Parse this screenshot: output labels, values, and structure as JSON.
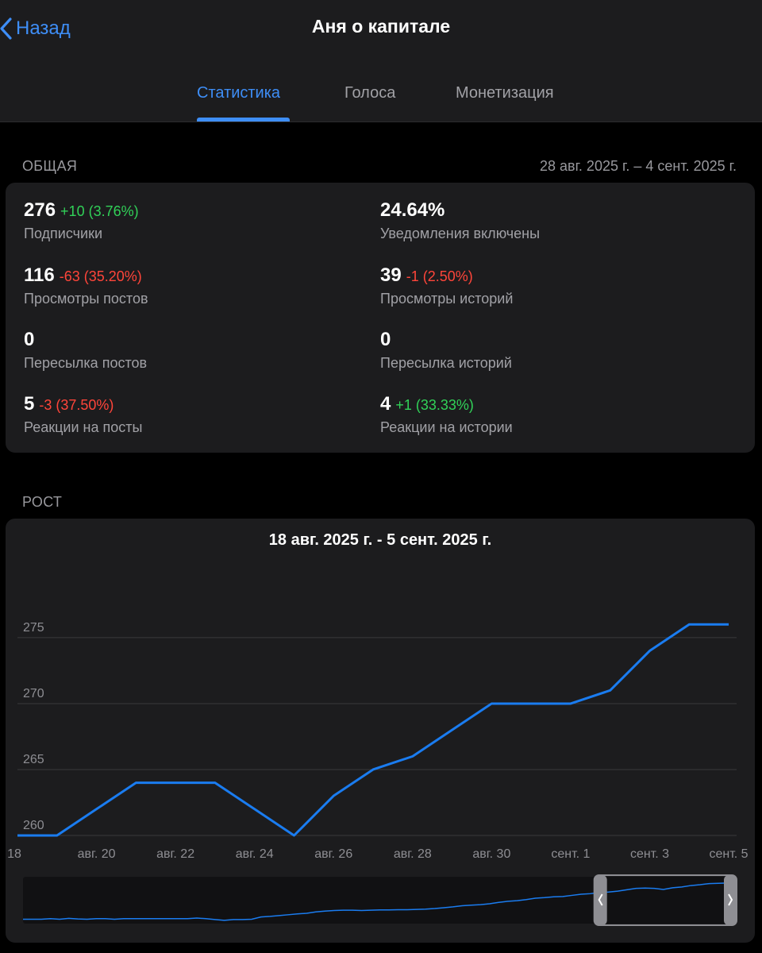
{
  "nav": {
    "back_label": "Назад",
    "title": "Аня о капитале"
  },
  "tabs": [
    {
      "label": "Статистика",
      "active": true
    },
    {
      "label": "Голоса",
      "active": false
    },
    {
      "label": "Монетизация",
      "active": false
    }
  ],
  "overview": {
    "section_label": "ОБЩАЯ",
    "date_range": "28 авг. 2025 г. – 4 сент. 2025 г.",
    "stats": [
      {
        "value": "276",
        "delta": "+10 (3.76%)",
        "trend": "positive",
        "label": "Подписчики"
      },
      {
        "value": "24.64%",
        "delta": "",
        "trend": "none",
        "label": "Уведомления включены"
      },
      {
        "value": "116",
        "delta": "-63 (35.20%)",
        "trend": "negative",
        "label": "Просмотры постов"
      },
      {
        "value": "39",
        "delta": "-1 (2.50%)",
        "trend": "negative",
        "label": "Просмотры историй"
      },
      {
        "value": "0",
        "delta": "",
        "trend": "none",
        "label": "Пересылка постов"
      },
      {
        "value": "0",
        "delta": "",
        "trend": "none",
        "label": "Пересылка историй"
      },
      {
        "value": "5",
        "delta": "-3 (37.50%)",
        "trend": "negative",
        "label": "Реакции на посты"
      },
      {
        "value": "4",
        "delta": "+1 (33.33%)",
        "trend": "positive",
        "label": "Реакции на истории"
      }
    ]
  },
  "growth": {
    "section_label": "РОСТ"
  },
  "colors": {
    "accent": "#3e8ef7",
    "line": "#1a7cf0",
    "positive": "#31d158",
    "negative": "#ff453a",
    "card": "#1c1c1e"
  },
  "chart_data": {
    "type": "line",
    "title": "18 авг. 2025 г. - 5 сент. 2025 г.",
    "xlabel": "",
    "ylabel": "",
    "x": [
      18,
      19,
      20,
      21,
      22,
      23,
      24,
      25,
      26,
      27,
      28,
      29,
      30,
      31,
      32,
      33,
      34,
      35,
      36
    ],
    "x_tick_positions": [
      18,
      20,
      22,
      24,
      26,
      28,
      30,
      32,
      34,
      36
    ],
    "x_tick_labels": [
      "18",
      "авг. 20",
      "авг. 22",
      "авг. 24",
      "авг. 26",
      "авг. 28",
      "авг. 30",
      "сент. 1",
      "сент. 3",
      "сент. 5"
    ],
    "y_ticks": [
      260,
      265,
      270,
      275
    ],
    "ylim": [
      260,
      276.5
    ],
    "xlim": [
      18,
      36.2
    ],
    "series": [
      {
        "name": "Подписчики",
        "values": [
          260,
          260,
          262,
          264,
          264,
          264,
          262,
          260,
          263,
          265,
          266,
          268,
          270,
          270,
          270,
          271,
          274,
          276,
          276
        ]
      }
    ],
    "navigator": {
      "overview_values": [
        259,
        259,
        259,
        259.2,
        259,
        259.3,
        259.1,
        259,
        259.2,
        259.2,
        259,
        259.2,
        259.2,
        259.2,
        259.2,
        259.2,
        259.2,
        259.2,
        259.2,
        259.4,
        259.2,
        258.9,
        258.6,
        258.9,
        258.9,
        259,
        259.8,
        260,
        260.3,
        260.6,
        260.9,
        261.1,
        261.6,
        261.9,
        262.1,
        262.2,
        262.2,
        262.1,
        262.2,
        262.3,
        262.3,
        262.4,
        262.4,
        262.5,
        262.6,
        262.8,
        263.1,
        263.4,
        263.8,
        264,
        264.2,
        264.5,
        265,
        265.4,
        265.6,
        266,
        266.5,
        266.7,
        267,
        267.1,
        267.5,
        267.9,
        268.1,
        268.5,
        268.7,
        269,
        269.5,
        270,
        270.1,
        270,
        269.6,
        270.2,
        270.5,
        271,
        271.3,
        271.7,
        271.8,
        271.9,
        272.3
      ],
      "window_start_fraction": 0.805,
      "window_end_fraction": 1.0
    }
  }
}
